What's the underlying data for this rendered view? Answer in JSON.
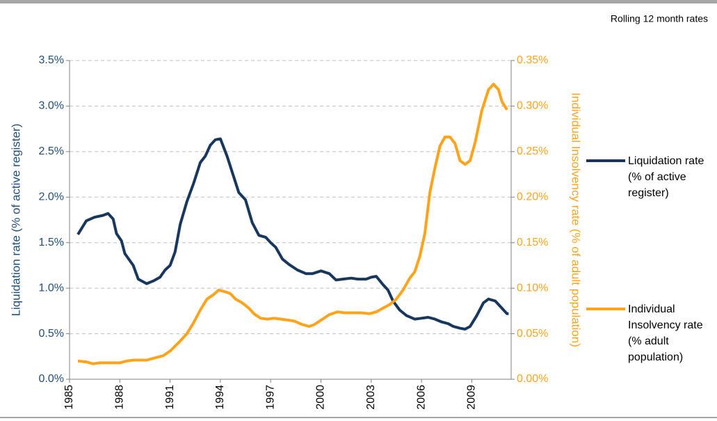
{
  "chart_data": {
    "type": "line",
    "subtitle": "Rolling 12 month rates",
    "y_label": "Liquidation rate (% of active register)",
    "y2_label": "Individual Insolvency rate (% of adult population)",
    "xlim": [
      1985,
      2011.35
    ],
    "xticks": [
      1985,
      1988,
      1991,
      1994,
      1997,
      2000,
      2003,
      2006,
      2009
    ],
    "ylim": [
      0,
      3.5
    ],
    "yticks": [
      {
        "value": 0,
        "label": "0.0%"
      },
      {
        "value": 0.5,
        "label": "0.5%"
      },
      {
        "value": 1,
        "label": "1.0%"
      },
      {
        "value": 1.5,
        "label": "1.5%"
      },
      {
        "value": 2,
        "label": "2.0%"
      },
      {
        "value": 2.5,
        "label": "2.5%"
      },
      {
        "value": 3,
        "label": "3.0%"
      },
      {
        "value": 3.5,
        "label": "3.5%"
      }
    ],
    "y2lim": [
      0,
      0.35
    ],
    "y2ticks": [
      {
        "value": 0,
        "label": "0.00%"
      },
      {
        "value": 0.05,
        "label": "0.05%"
      },
      {
        "value": 0.1,
        "label": "0.10%"
      },
      {
        "value": 0.15,
        "label": "0.15%"
      },
      {
        "value": 0.2,
        "label": "0.20%"
      },
      {
        "value": 0.25,
        "label": "0.25%"
      },
      {
        "value": 0.3,
        "label": "0.30%"
      },
      {
        "value": 0.35,
        "label": "0.35%"
      }
    ],
    "grid": true,
    "series": [
      {
        "name": "Liquidation rate (% of active register)",
        "color": "#17375e",
        "axis": "y",
        "x": [
          1985.5,
          1986.0,
          1986.5,
          1987.0,
          1987.3,
          1987.6,
          1987.8,
          1988.1,
          1988.3,
          1988.8,
          1989.1,
          1989.6,
          1990.0,
          1990.4,
          1990.7,
          1991.0,
          1991.3,
          1991.6,
          1992.0,
          1992.4,
          1992.8,
          1993.1,
          1993.4,
          1993.7,
          1994.0,
          1994.4,
          1994.8,
          1995.1,
          1995.5,
          1995.9,
          1996.3,
          1996.7,
          1997.0,
          1997.3,
          1997.7,
          1998.1,
          1998.6,
          1999.1,
          1999.5,
          2000.0,
          2000.5,
          2000.9,
          2001.3,
          2001.8,
          2002.2,
          2002.7,
          2003.0,
          2003.3,
          2003.7,
          2004.0,
          2004.3,
          2004.7,
          2005.1,
          2005.6,
          2006.0,
          2006.4,
          2006.8,
          2007.2,
          2007.6,
          2007.9,
          2008.3,
          2008.6,
          2008.9,
          2009.3,
          2009.7,
          2010.0,
          2010.4,
          2010.8,
          2011.1,
          2011.2
        ],
        "values": [
          1.59,
          1.74,
          1.78,
          1.8,
          1.82,
          1.76,
          1.6,
          1.52,
          1.38,
          1.25,
          1.1,
          1.05,
          1.08,
          1.12,
          1.2,
          1.25,
          1.4,
          1.7,
          1.95,
          2.15,
          2.38,
          2.45,
          2.57,
          2.63,
          2.64,
          2.45,
          2.22,
          2.05,
          1.97,
          1.72,
          1.58,
          1.56,
          1.5,
          1.45,
          1.32,
          1.26,
          1.2,
          1.16,
          1.16,
          1.19,
          1.16,
          1.09,
          1.1,
          1.11,
          1.1,
          1.1,
          1.12,
          1.13,
          1.04,
          0.98,
          0.86,
          0.76,
          0.7,
          0.66,
          0.67,
          0.68,
          0.66,
          0.63,
          0.61,
          0.58,
          0.56,
          0.55,
          0.58,
          0.7,
          0.84,
          0.88,
          0.86,
          0.78,
          0.72,
          0.72
        ]
      },
      {
        "name": "Individual Insolvency rate (% adult population)",
        "color": "#ffa31a",
        "axis": "y2",
        "x": [
          1985.5,
          1986.0,
          1986.4,
          1986.8,
          1987.5,
          1988.0,
          1988.4,
          1988.8,
          1989.6,
          1990.0,
          1990.6,
          1991.0,
          1991.5,
          1992.0,
          1992.4,
          1992.8,
          1993.2,
          1993.6,
          1993.9,
          1994.3,
          1994.6,
          1994.9,
          1995.3,
          1995.7,
          1996.0,
          1996.4,
          1996.8,
          1997.2,
          1997.6,
          1998.0,
          1998.4,
          1998.9,
          1999.3,
          1999.6,
          2000.1,
          2000.5,
          2001.0,
          2001.4,
          2001.9,
          2002.4,
          2002.9,
          2003.3,
          2003.7,
          2004.1,
          2004.5,
          2004.9,
          2005.3,
          2005.6,
          2005.9,
          2006.2,
          2006.5,
          2006.8,
          2007.1,
          2007.4,
          2007.7,
          2008.0,
          2008.3,
          2008.6,
          2008.9,
          2009.2,
          2009.6,
          2010.0,
          2010.3,
          2010.6,
          2010.8,
          2011.1
        ],
        "values": [
          0.02,
          0.019,
          0.017,
          0.018,
          0.018,
          0.018,
          0.02,
          0.021,
          0.021,
          0.023,
          0.026,
          0.031,
          0.04,
          0.05,
          0.062,
          0.076,
          0.088,
          0.093,
          0.098,
          0.096,
          0.094,
          0.088,
          0.084,
          0.078,
          0.072,
          0.067,
          0.066,
          0.067,
          0.066,
          0.065,
          0.064,
          0.06,
          0.058,
          0.06,
          0.066,
          0.071,
          0.074,
          0.073,
          0.073,
          0.073,
          0.072,
          0.074,
          0.078,
          0.082,
          0.088,
          0.098,
          0.111,
          0.118,
          0.135,
          0.16,
          0.205,
          0.232,
          0.256,
          0.266,
          0.266,
          0.259,
          0.24,
          0.236,
          0.24,
          0.26,
          0.295,
          0.318,
          0.324,
          0.318,
          0.305,
          0.296
        ]
      }
    ]
  }
}
